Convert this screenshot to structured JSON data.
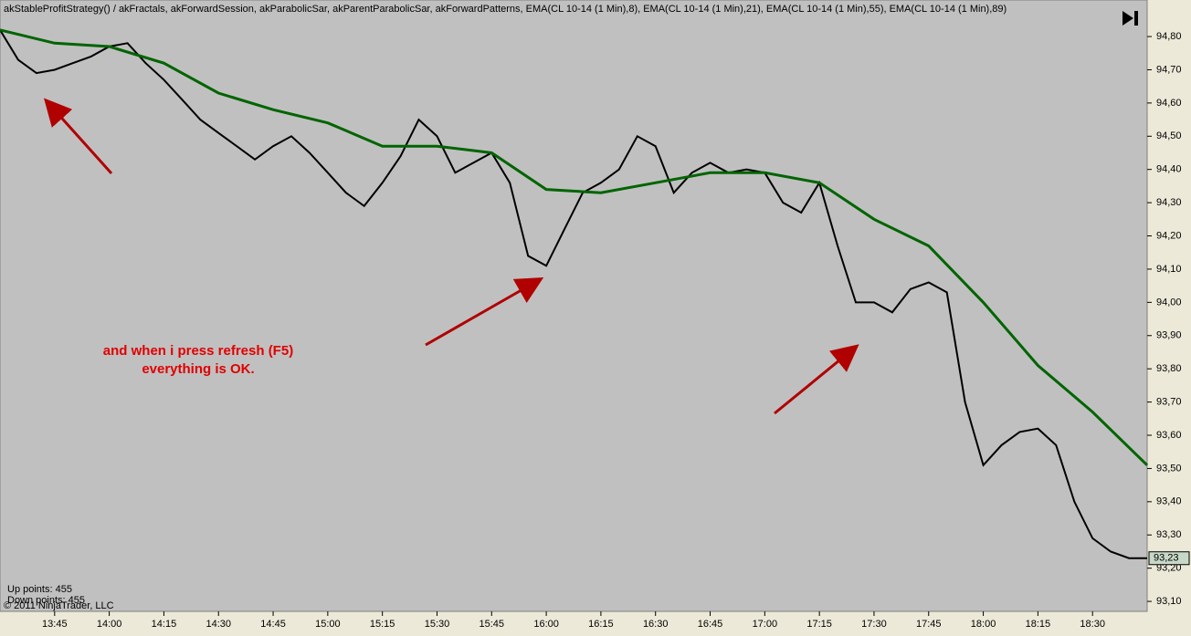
{
  "chart_data": {
    "type": "line",
    "title": "akStableProfitStrategy() / akFractals, akForwardSession, akParabolicSar, akParentParabolicSar, akForwardPatterns, EMA(CL 10-14 (1 Min),8), EMA(CL 10-14 (1 Min),21), EMA(CL 10-14 (1 Min),55), EMA(CL 10-14 (1 Min),89)",
    "annotation": [
      "and when i press refresh (F5)",
      "everything is OK."
    ],
    "status": [
      "Up points: 455",
      "Down points: 455"
    ],
    "copyright": "© 2011 NinjaTrader, LLC",
    "last_price": {
      "value": 93.23,
      "label": "93,23"
    },
    "xlim": [
      810,
      1125
    ],
    "xticks": [
      {
        "value": 825,
        "label": "13:45"
      },
      {
        "value": 840,
        "label": "14:00"
      },
      {
        "value": 855,
        "label": "14:15"
      },
      {
        "value": 870,
        "label": "14:30"
      },
      {
        "value": 885,
        "label": "14:45"
      },
      {
        "value": 900,
        "label": "15:00"
      },
      {
        "value": 915,
        "label": "15:15"
      },
      {
        "value": 930,
        "label": "15:30"
      },
      {
        "value": 945,
        "label": "15:45"
      },
      {
        "value": 960,
        "label": "16:00"
      },
      {
        "value": 975,
        "label": "16:15"
      },
      {
        "value": 990,
        "label": "16:30"
      },
      {
        "value": 1005,
        "label": "16:45"
      },
      {
        "value": 1020,
        "label": "17:00"
      },
      {
        "value": 1035,
        "label": "17:15"
      },
      {
        "value": 1050,
        "label": "17:30"
      },
      {
        "value": 1065,
        "label": "17:45"
      },
      {
        "value": 1080,
        "label": "18:00"
      },
      {
        "value": 1095,
        "label": "18:15"
      },
      {
        "value": 1110,
        "label": "18:30"
      }
    ],
    "ylim": [
      93.07,
      94.91
    ],
    "yticks": [
      {
        "value": 94.8,
        "label": "94,80"
      },
      {
        "value": 94.7,
        "label": "94,70"
      },
      {
        "value": 94.6,
        "label": "94,60"
      },
      {
        "value": 94.5,
        "label": "94,50"
      },
      {
        "value": 94.4,
        "label": "94,40"
      },
      {
        "value": 94.3,
        "label": "94,30"
      },
      {
        "value": 94.2,
        "label": "94,20"
      },
      {
        "value": 94.1,
        "label": "94,10"
      },
      {
        "value": 94.0,
        "label": "94,00"
      },
      {
        "value": 93.9,
        "label": "93,90"
      },
      {
        "value": 93.8,
        "label": "93,80"
      },
      {
        "value": 93.7,
        "label": "93,70"
      },
      {
        "value": 93.6,
        "label": "93,60"
      },
      {
        "value": 93.5,
        "label": "93,50"
      },
      {
        "value": 93.4,
        "label": "93,40"
      },
      {
        "value": 93.3,
        "label": "93,30"
      },
      {
        "value": 93.2,
        "label": "93,20"
      },
      {
        "value": 93.1,
        "label": "93,10"
      }
    ],
    "grid": false,
    "series": [
      {
        "color": "#000000",
        "x": [
          810,
          815,
          820,
          825,
          830,
          835,
          840,
          845,
          850,
          855,
          860,
          865,
          870,
          875,
          880,
          885,
          890,
          895,
          900,
          905,
          910,
          915,
          920,
          925,
          930,
          935,
          940,
          945,
          950,
          955,
          960,
          965,
          970,
          975,
          980,
          985,
          990,
          995,
          1000,
          1005,
          1010,
          1015,
          1020,
          1025,
          1030,
          1035,
          1040,
          1045,
          1050,
          1055,
          1060,
          1065,
          1070,
          1075,
          1080,
          1085,
          1090,
          1095,
          1100,
          1105,
          1110,
          1115,
          1120,
          1125
        ],
        "values": [
          94.82,
          94.73,
          94.69,
          94.7,
          94.72,
          94.74,
          94.77,
          94.78,
          94.72,
          94.67,
          94.61,
          94.55,
          94.51,
          94.47,
          94.43,
          94.47,
          94.5,
          94.45,
          94.39,
          94.33,
          94.29,
          94.36,
          94.44,
          94.55,
          94.5,
          94.39,
          94.42,
          94.45,
          94.36,
          94.14,
          94.11,
          94.22,
          94.33,
          94.36,
          94.4,
          94.5,
          94.47,
          94.33,
          94.39,
          94.42,
          94.39,
          94.4,
          94.39,
          94.3,
          94.27,
          94.36,
          94.17,
          94.0,
          94.0,
          93.97,
          94.04,
          94.06,
          94.03,
          93.7,
          93.51,
          93.57,
          93.61,
          93.62,
          93.57,
          93.4,
          93.29,
          93.25,
          93.23,
          93.23
        ]
      },
      {
        "color": "#006400",
        "x": [
          810,
          825,
          840,
          855,
          870,
          885,
          900,
          915,
          930,
          945,
          960,
          975,
          990,
          1005,
          1020,
          1035,
          1050,
          1065,
          1080,
          1095,
          1110,
          1125
        ],
        "values": [
          94.82,
          94.78,
          94.77,
          94.72,
          94.63,
          94.58,
          94.54,
          94.47,
          94.47,
          94.45,
          94.34,
          94.33,
          94.36,
          94.39,
          94.39,
          94.36,
          94.25,
          94.17,
          94.0,
          93.81,
          93.67,
          93.51
        ]
      }
    ]
  }
}
